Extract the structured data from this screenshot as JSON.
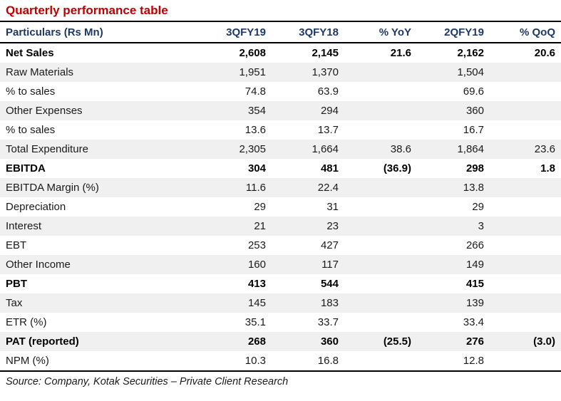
{
  "title": "Quarterly performance table",
  "colors": {
    "title_red": "#C00000",
    "header_navy": "#1F3864",
    "stripe_gray": "#F0F0F0",
    "rule_black": "#000000"
  },
  "table": {
    "columns": [
      "Particulars (Rs Mn)",
      "3QFY19",
      "3QFY18",
      "% YoY",
      "2QFY19",
      "% QoQ"
    ],
    "rows": [
      {
        "label": "Net Sales",
        "values": [
          "2,608",
          "2,145",
          "21.6",
          "2,162",
          "20.6"
        ],
        "bold": true
      },
      {
        "label": "Raw Materials",
        "values": [
          "1,951",
          "1,370",
          "",
          "1,504",
          ""
        ],
        "bold": false
      },
      {
        "label": "% to sales",
        "values": [
          "74.8",
          "63.9",
          "",
          "69.6",
          ""
        ],
        "bold": false
      },
      {
        "label": "Other Expenses",
        "values": [
          "354",
          "294",
          "",
          "360",
          ""
        ],
        "bold": false
      },
      {
        "label": "% to sales",
        "values": [
          "13.6",
          "13.7",
          "",
          "16.7",
          ""
        ],
        "bold": false
      },
      {
        "label": "Total Expenditure",
        "values": [
          "2,305",
          "1,664",
          "38.6",
          "1,864",
          "23.6"
        ],
        "bold": false
      },
      {
        "label": "EBITDA",
        "values": [
          "304",
          "481",
          "(36.9)",
          "298",
          "1.8"
        ],
        "bold": true
      },
      {
        "label": "EBITDA Margin (%)",
        "values": [
          "11.6",
          "22.4",
          "",
          "13.8",
          ""
        ],
        "bold": false
      },
      {
        "label": "Depreciation",
        "values": [
          "29",
          "31",
          "",
          "29",
          ""
        ],
        "bold": false
      },
      {
        "label": "Interest",
        "values": [
          "21",
          "23",
          "",
          "3",
          ""
        ],
        "bold": false
      },
      {
        "label": "EBT",
        "values": [
          "253",
          "427",
          "",
          "266",
          ""
        ],
        "bold": false
      },
      {
        "label": "Other Income",
        "values": [
          "160",
          "117",
          "",
          "149",
          ""
        ],
        "bold": false
      },
      {
        "label": "PBT",
        "values": [
          "413",
          "544",
          "",
          "415",
          ""
        ],
        "bold": true
      },
      {
        "label": "Tax",
        "values": [
          "145",
          "183",
          "",
          "139",
          ""
        ],
        "bold": false
      },
      {
        "label": "ETR (%)",
        "values": [
          "35.1",
          "33.7",
          "",
          "33.4",
          ""
        ],
        "bold": false
      },
      {
        "label": "PAT (reported)",
        "values": [
          "268",
          "360",
          "(25.5)",
          "276",
          "(3.0)"
        ],
        "bold": true
      },
      {
        "label": "NPM (%)",
        "values": [
          "10.3",
          "16.8",
          "",
          "12.8",
          ""
        ],
        "bold": false
      }
    ]
  },
  "source": "Source: Company, Kotak Securities – Private Client Research"
}
